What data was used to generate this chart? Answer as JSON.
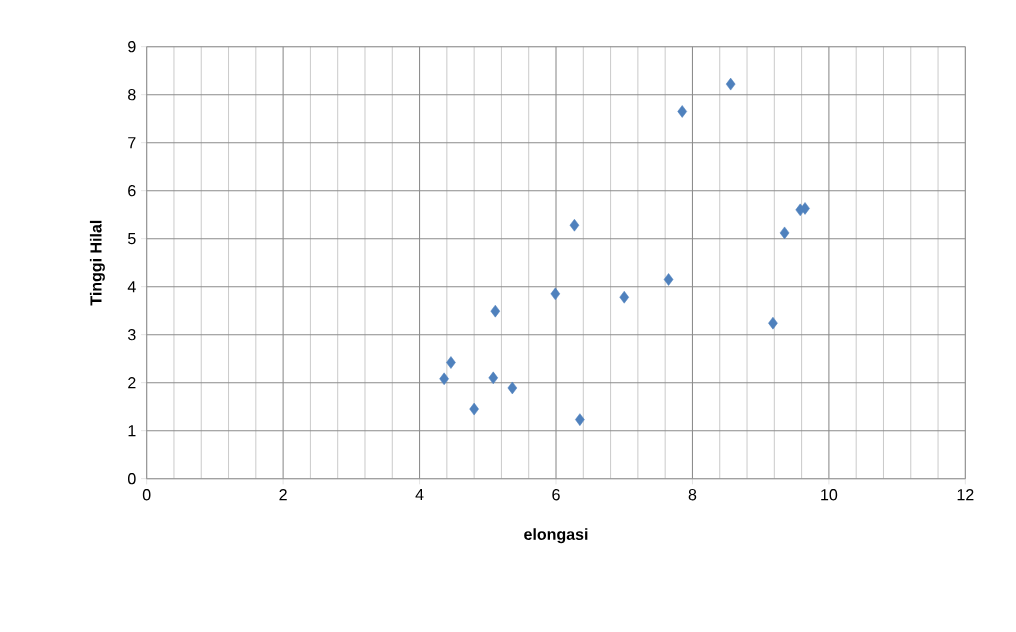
{
  "chart_data": {
    "type": "scatter",
    "xlabel": "elongasi",
    "ylabel": "Tinggi Hilal",
    "marker": "diamond",
    "grid": true,
    "xlim": [
      0,
      12
    ],
    "ylim": [
      0,
      9
    ],
    "xticks": [
      0,
      2,
      4,
      6,
      8,
      10,
      12
    ],
    "yticks": [
      0,
      1,
      2,
      3,
      4,
      5,
      6,
      7,
      8,
      9
    ],
    "series": [
      {
        "color": "#4f81bd",
        "x": [
          4.36,
          4.46,
          4.8,
          5.08,
          5.11,
          5.36,
          5.99,
          6.27,
          6.35,
          7.0,
          7.65,
          7.85,
          8.56,
          9.18,
          9.35,
          9.58,
          9.65
        ],
        "values": [
          2.08,
          2.42,
          1.45,
          2.1,
          3.49,
          1.89,
          3.85,
          5.28,
          1.23,
          3.78,
          4.15,
          7.65,
          8.22,
          3.24,
          5.12,
          5.6,
          5.63
        ]
      }
    ]
  }
}
